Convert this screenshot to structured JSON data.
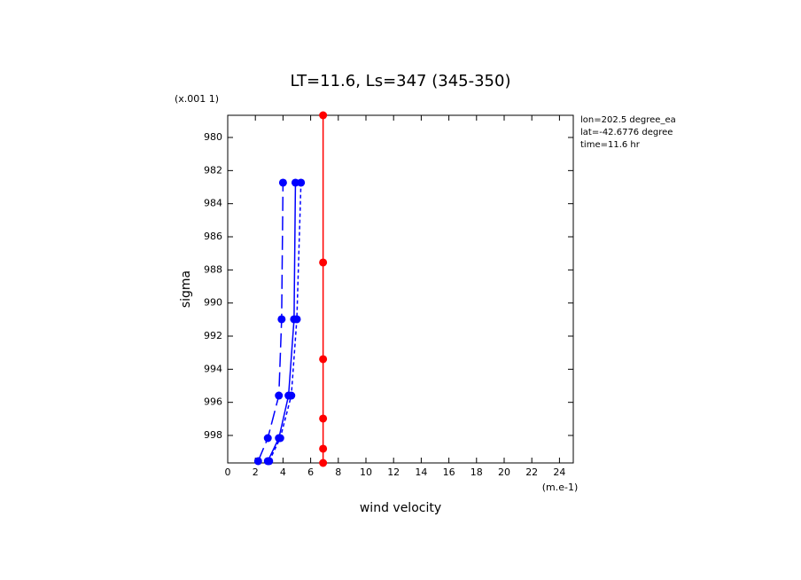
{
  "chart_data": {
    "type": "line",
    "title": "LT=11.6, Ls=347 (345-350)",
    "x_label": "wind velocity",
    "x_unit": "(m.e-1)",
    "y_label": "sigma",
    "y_unit": "(x.001 1)",
    "annotations": [
      "lon=202.5 degree_ea",
      "lat=-42.6776 degree",
      "time=11.6 hr"
    ],
    "xlim": [
      0,
      25
    ],
    "xticks": [
      0,
      2,
      4,
      6,
      8,
      10,
      12,
      14,
      16,
      18,
      20,
      22,
      24
    ],
    "ylim": [
      978.66,
      999.66
    ],
    "y_inverted": true,
    "yticks": [
      980,
      982,
      984,
      986,
      988,
      990,
      992,
      994,
      996,
      998
    ],
    "series": [
      {
        "color": "#0000ff",
        "dash": "long",
        "y": [
          999.55,
          998.16,
          995.59,
          990.98,
          982.73
        ],
        "values": [
          2.2,
          2.9,
          3.7,
          3.9,
          4.0
        ]
      },
      {
        "color": "#0000ff",
        "dash": "solid",
        "y": [
          999.55,
          998.16,
          995.59,
          990.98,
          982.73
        ],
        "values": [
          2.9,
          3.7,
          4.4,
          4.8,
          4.9
        ]
      },
      {
        "color": "#0000ff",
        "dash": "short",
        "y": [
          999.55,
          998.16,
          995.59,
          990.98,
          982.73
        ],
        "values": [
          3.0,
          3.8,
          4.6,
          5.0,
          5.3
        ]
      },
      {
        "color": "#ff0000",
        "dash": "solid",
        "y": [
          978.66,
          987.55,
          993.39,
          996.98,
          998.8,
          999.66
        ],
        "values": [
          6.9,
          6.9,
          6.9,
          6.9,
          6.9,
          6.9
        ]
      }
    ]
  }
}
